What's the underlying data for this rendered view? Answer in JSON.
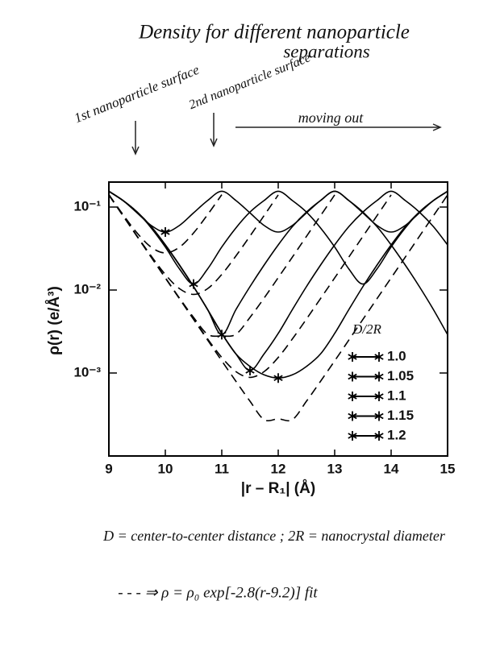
{
  "chart_data": {
    "type": "line",
    "title": "Density for different nanoparticle",
    "subtitle": "separations",
    "annotations": [
      "1st nanoparticle surface",
      "2nd nanoparticle surface",
      "moving out"
    ],
    "notes": [
      "D = center-to-center distance ; 2R = nanocrystal diameter",
      "- - -  ⇒ ρ = ρ₀ exp[-2.8(r-9.2)] fit"
    ],
    "xlabel": "|r – R₁| (Å)",
    "ylabel": "ρ(r) (e/Å³)",
    "legend_title": "D/2R",
    "legend_position": "lower right",
    "yscale": "log",
    "xlim": [
      9,
      15
    ],
    "ylim": [
      0.0001,
      0.2
    ],
    "xticks": [
      9,
      10,
      11,
      12,
      13,
      14,
      15
    ],
    "yticks": [
      {
        "value": 0.1,
        "label": "10⁻¹"
      },
      {
        "value": 0.01,
        "label": "10⁻²"
      },
      {
        "value": 0.001,
        "label": "10⁻³"
      }
    ],
    "x": [
      9,
      9.25,
      9.5,
      9.75,
      10,
      10.25,
      10.5,
      10.75,
      11,
      11.25,
      11.5,
      11.75,
      12,
      12.25,
      12.5,
      12.75,
      13,
      13.25,
      13.5,
      13.75,
      14,
      14.25,
      14.5,
      14.75,
      15
    ],
    "series": [
      {
        "name": "1.0",
        "color": "#000000",
        "marker_x": 10,
        "marker_y": 0.05,
        "values": [
          0.155,
          0.12,
          0.085,
          0.06,
          0.05,
          0.06,
          0.085,
          0.12,
          0.155,
          0.12,
          0.085,
          0.06,
          0.05,
          0.06,
          0.085,
          0.12,
          0.155,
          0.12,
          0.085,
          0.06,
          0.05,
          0.06,
          0.085,
          0.12,
          0.155
        ]
      },
      {
        "name": "1.05",
        "color": "#000000",
        "marker_x": 10.5,
        "marker_y": 0.0118,
        "values": [
          0.155,
          0.12,
          0.087,
          0.056,
          0.033,
          0.018,
          0.0118,
          0.018,
          0.033,
          0.056,
          0.087,
          0.12,
          0.155,
          0.12,
          0.087,
          0.056,
          0.033,
          0.018,
          0.0118,
          0.018,
          0.033,
          0.056,
          0.087,
          0.12,
          0.155
        ]
      },
      {
        "name": "1.1",
        "color": "#000000",
        "marker_x": 11,
        "marker_y": 0.0029,
        "values": [
          0.155,
          0.12,
          0.087,
          0.058,
          0.035,
          0.02,
          0.011,
          0.0058,
          0.0029,
          0.0058,
          0.011,
          0.02,
          0.035,
          0.058,
          0.087,
          0.12,
          0.155,
          0.12,
          0.087,
          0.058,
          0.035,
          0.02,
          0.011,
          0.0058,
          0.0029
        ]
      },
      {
        "name": "1.15",
        "color": "#000000",
        "marker_x": 11.5,
        "marker_y": 0.00107,
        "values": [
          0.155,
          0.12,
          0.087,
          0.058,
          0.035,
          0.02,
          0.011,
          0.0058,
          0.003,
          0.0017,
          0.00107,
          0.0017,
          0.003,
          0.0058,
          0.011,
          0.02,
          0.035,
          0.058,
          0.087,
          0.12,
          0.155,
          0.12,
          0.087,
          0.058,
          0.035
        ]
      },
      {
        "name": "1.2",
        "color": "#000000",
        "marker_x": 12,
        "marker_y": 0.00087,
        "values": [
          0.155,
          0.12,
          0.087,
          0.058,
          0.035,
          0.02,
          0.011,
          0.0058,
          0.003,
          0.0017,
          0.0012,
          0.00095,
          0.00087,
          0.00095,
          0.0012,
          0.0017,
          0.003,
          0.0058,
          0.011,
          0.02,
          0.035,
          0.058,
          0.087,
          0.12,
          0.155
        ]
      }
    ],
    "fit_style": "dashed",
    "fit_color": "#000000",
    "fits": [
      {
        "values": [
          0.141,
          0.0812,
          0.0487,
          0.0328,
          0.028,
          0.0328,
          0.0487,
          0.0812,
          0.141,
          null,
          null,
          null,
          null,
          null,
          null,
          null,
          null,
          null,
          null,
          null,
          null,
          null,
          null,
          null,
          null
        ]
      },
      {
        "values": [
          0.14,
          0.079,
          0.0447,
          0.0257,
          0.0154,
          0.0104,
          0.00886,
          0.0104,
          0.0154,
          0.0257,
          0.0447,
          0.079,
          0.14,
          null,
          null,
          null,
          null,
          null,
          null,
          null,
          null,
          null,
          null,
          null,
          null
        ]
      },
      {
        "values": [
          0.14,
          0.0787,
          0.0443,
          0.0249,
          0.0141,
          0.008,
          0.00468,
          0.00293,
          0.0028,
          0.00293,
          0.00468,
          0.008,
          0.0141,
          0.0249,
          0.0443,
          0.0787,
          0.14,
          null,
          null,
          null,
          null,
          null,
          null,
          null,
          null
        ]
      },
      {
        "values": [
          0.14,
          0.0787,
          0.0443,
          0.0249,
          0.014,
          0.0079,
          0.00447,
          0.00257,
          0.00154,
          0.00104,
          0.000886,
          0.00104,
          0.00154,
          0.00257,
          0.00447,
          0.0079,
          0.014,
          0.0249,
          0.0443,
          0.0787,
          0.14,
          null,
          null,
          null,
          null
        ]
      },
      {
        "values": [
          0.14,
          0.0787,
          0.0443,
          0.0249,
          0.014,
          0.00787,
          0.00443,
          0.00249,
          0.0014,
          0.000795,
          0.000457,
          0.000274,
          0.00028,
          0.000274,
          0.000457,
          0.000795,
          0.0014,
          0.00249,
          0.00443,
          0.00787,
          0.014,
          0.0249,
          0.0443,
          0.0787,
          0.14
        ]
      }
    ]
  }
}
